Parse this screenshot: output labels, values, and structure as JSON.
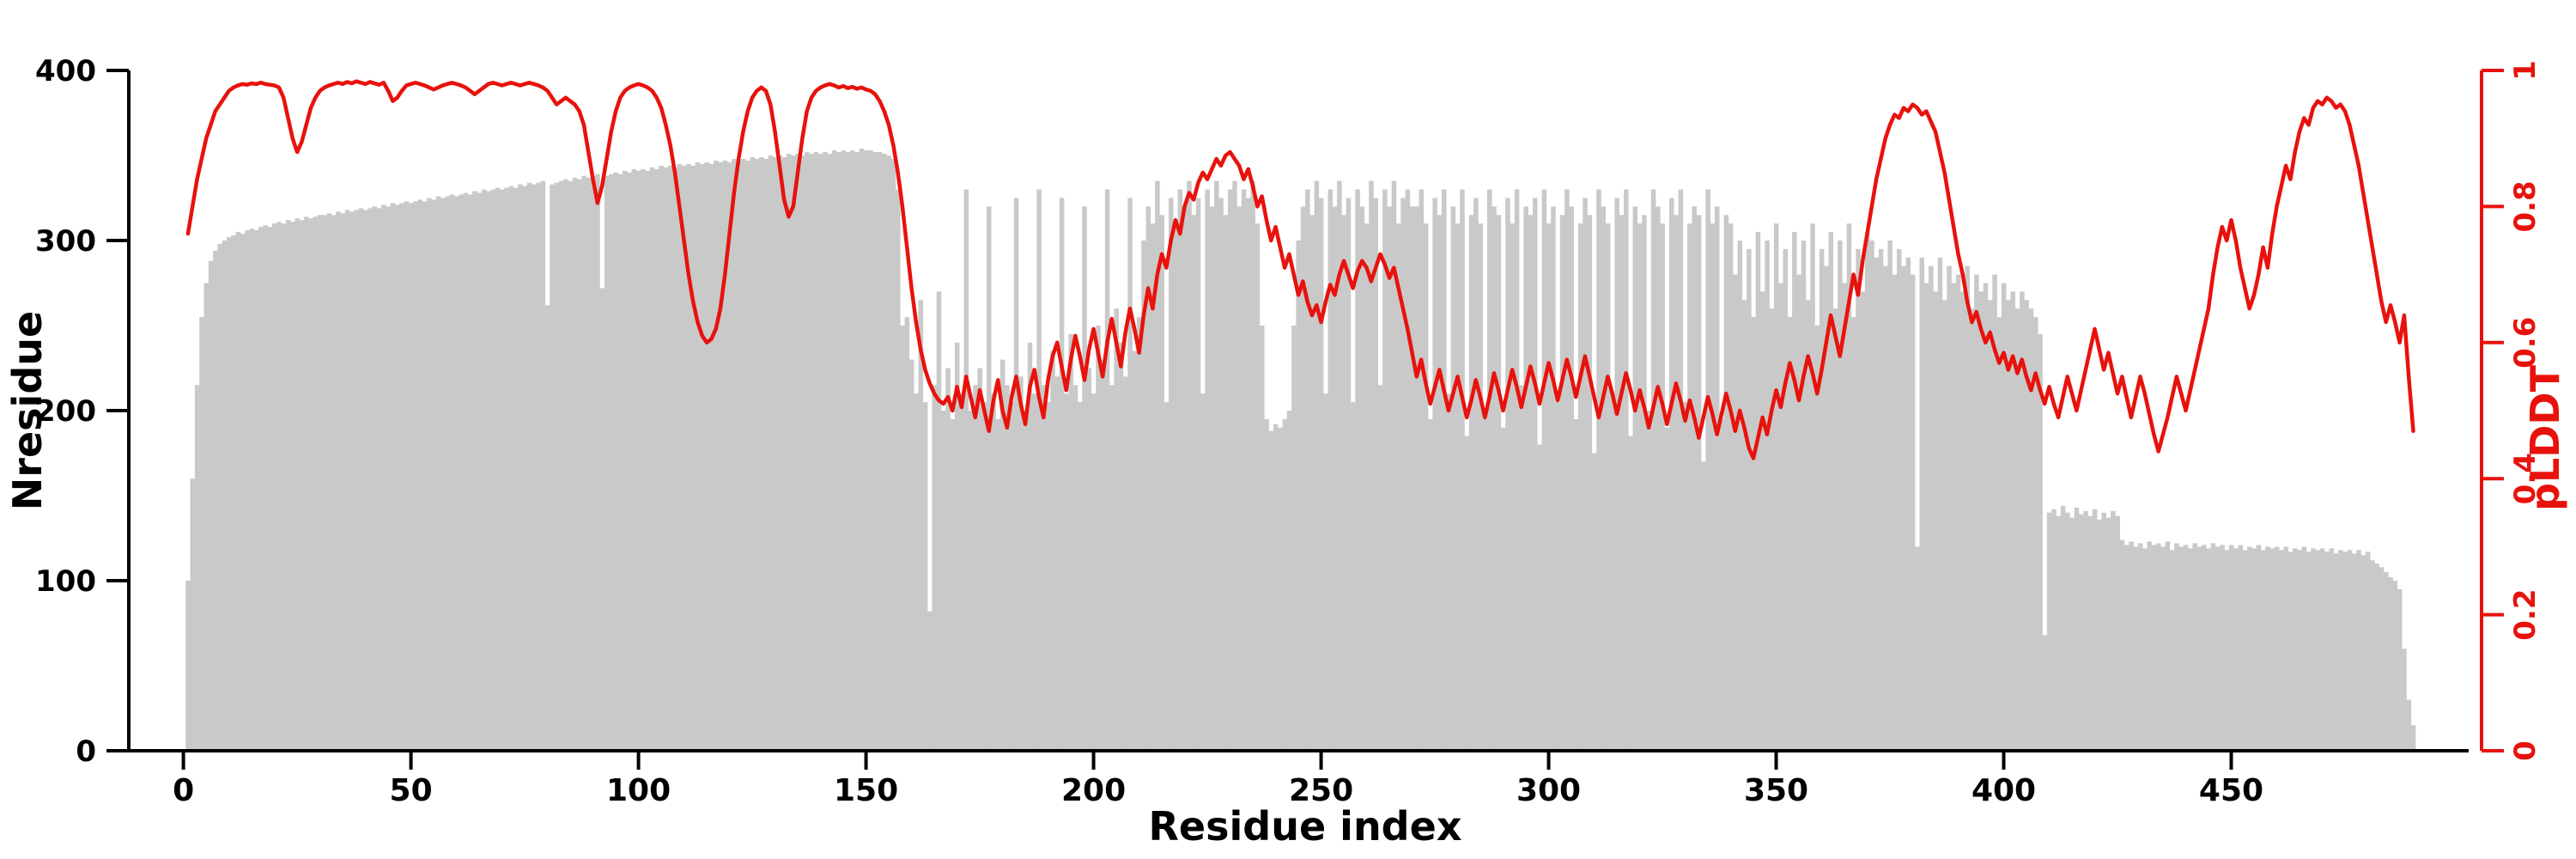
{
  "chart_data": {
    "type": "bar",
    "title": "",
    "xlabel": "Residue index",
    "ylabel_left": "Nresidue",
    "ylabel_right": "pLDDT",
    "xlim": [
      -12,
      505
    ],
    "ylim_left": [
      0,
      400
    ],
    "ylim_right": [
      0,
      1
    ],
    "x_ticks": [
      0,
      50,
      100,
      150,
      200,
      250,
      300,
      350,
      400,
      450
    ],
    "y_left_ticks": [
      0,
      100,
      200,
      300,
      400
    ],
    "y_right_tick_labels": [
      "0",
      "0.2",
      "0.4",
      "0.6",
      "0.8",
      "1"
    ],
    "y_right_tick_values": [
      0,
      0.2,
      0.4,
      0.6,
      0.8,
      1
    ],
    "grid": false,
    "legend": "none",
    "bar_color": "#c9c9c9",
    "line_color": "#e8120c",
    "axis_color": "#000000",
    "series": [
      {
        "name": "Nresidue",
        "type": "bar",
        "axis": "left",
        "x_start": 1,
        "values": [
          100,
          160,
          215,
          255,
          275,
          288,
          294,
          298,
          300,
          302,
          303,
          305,
          304,
          306,
          307,
          306,
          308,
          309,
          308,
          310,
          311,
          310,
          312,
          311,
          313,
          312,
          314,
          313,
          314,
          315,
          315,
          316,
          315,
          317,
          316,
          318,
          317,
          318,
          319,
          318,
          319,
          320,
          319,
          321,
          320,
          322,
          321,
          322,
          323,
          322,
          323,
          324,
          323,
          325,
          324,
          326,
          325,
          326,
          327,
          326,
          327,
          328,
          327,
          329,
          328,
          330,
          329,
          330,
          331,
          330,
          331,
          332,
          331,
          333,
          332,
          334,
          333,
          334,
          335,
          262,
          333,
          334,
          335,
          336,
          335,
          337,
          336,
          338,
          337,
          338,
          339,
          272,
          338,
          339,
          340,
          339,
          341,
          340,
          342,
          341,
          342,
          341,
          343,
          342,
          344,
          343,
          344,
          343,
          345,
          344,
          345,
          344,
          346,
          345,
          346,
          345,
          347,
          346,
          347,
          346,
          348,
          347,
          348,
          347,
          349,
          348,
          349,
          348,
          350,
          349,
          350,
          349,
          351,
          350,
          351,
          350,
          352,
          351,
          352,
          351,
          352,
          351,
          353,
          352,
          353,
          352,
          353,
          352,
          354,
          353,
          353,
          352,
          352,
          351,
          350,
          348,
          330,
          250,
          255,
          230,
          210,
          265,
          205,
          82,
          215,
          270,
          200,
          225,
          195,
          240,
          210,
          330,
          200,
          215,
          225,
          205,
          320,
          210,
          195,
          230,
          215,
          205,
          325,
          220,
          200,
          240,
          210,
          330,
          215,
          205,
          235,
          220,
          325,
          210,
          245,
          215,
          205,
          320,
          225,
          210,
          250,
          230,
          330,
          215,
          260,
          240,
          220,
          325,
          235,
          255,
          300,
          320,
          310,
          335,
          315,
          205,
          325,
          310,
          330,
          320,
          335,
          315,
          325,
          210,
          330,
          320,
          335,
          325,
          315,
          330,
          335,
          320,
          330,
          325,
          335,
          310,
          250,
          195,
          188,
          192,
          190,
          195,
          200,
          250,
          300,
          320,
          330,
          315,
          335,
          325,
          210,
          330,
          320,
          335,
          315,
          325,
          205,
          330,
          320,
          310,
          335,
          325,
          215,
          330,
          320,
          335,
          310,
          325,
          330,
          320,
          320,
          330,
          310,
          195,
          325,
          315,
          330,
          210,
          320,
          310,
          330,
          185,
          315,
          325,
          310,
          200,
          330,
          320,
          315,
          190,
          325,
          310,
          330,
          215,
          320,
          315,
          325,
          180,
          330,
          310,
          320,
          205,
          315,
          330,
          320,
          195,
          310,
          325,
          315,
          175,
          330,
          320,
          310,
          210,
          325,
          315,
          330,
          185,
          320,
          310,
          315,
          200,
          330,
          320,
          310,
          190,
          325,
          315,
          330,
          205,
          310,
          320,
          315,
          170,
          330,
          310,
          320,
          195,
          315,
          310,
          280,
          300,
          265,
          295,
          255,
          305,
          270,
          300,
          260,
          310,
          275,
          295,
          255,
          305,
          280,
          300,
          265,
          310,
          250,
          295,
          285,
          305,
          260,
          300,
          275,
          310,
          255,
          295,
          270,
          305,
          300,
          290,
          295,
          285,
          300,
          280,
          295,
          285,
          290,
          280,
          120,
          290,
          275,
          285,
          270,
          290,
          265,
          285,
          275,
          280,
          270,
          285,
          260,
          280,
          270,
          275,
          265,
          280,
          255,
          275,
          265,
          270,
          260,
          270,
          265,
          260,
          255,
          245,
          68,
          140,
          142,
          138,
          144,
          140,
          137,
          143,
          139,
          141,
          138,
          142,
          136,
          140,
          137,
          141,
          138,
          124,
          121,
          123,
          120,
          122,
          119,
          123,
          121,
          122,
          120,
          123,
          118,
          122,
          120,
          121,
          119,
          122,
          120,
          121,
          119,
          122,
          120,
          121,
          118,
          121,
          119,
          121,
          118,
          120,
          119,
          121,
          118,
          120,
          119,
          120,
          118,
          120,
          117,
          119,
          118,
          120,
          117,
          119,
          118,
          119,
          117,
          119,
          116,
          118,
          117,
          118,
          116,
          118,
          115,
          117,
          112,
          110,
          108,
          105,
          102,
          100,
          95,
          60,
          30,
          15
        ]
      },
      {
        "name": "pLDDT",
        "type": "line",
        "axis": "right",
        "x_start": 1,
        "values": [
          0.76,
          0.8,
          0.84,
          0.87,
          0.9,
          0.92,
          0.94,
          0.95,
          0.96,
          0.97,
          0.975,
          0.978,
          0.98,
          0.979,
          0.981,
          0.98,
          0.982,
          0.98,
          0.979,
          0.978,
          0.975,
          0.96,
          0.93,
          0.9,
          0.88,
          0.895,
          0.92,
          0.945,
          0.96,
          0.97,
          0.975,
          0.978,
          0.98,
          0.982,
          0.98,
          0.983,
          0.981,
          0.984,
          0.982,
          0.98,
          0.983,
          0.981,
          0.979,
          0.982,
          0.97,
          0.955,
          0.96,
          0.97,
          0.978,
          0.98,
          0.982,
          0.98,
          0.978,
          0.975,
          0.972,
          0.975,
          0.978,
          0.98,
          0.982,
          0.98,
          0.978,
          0.975,
          0.97,
          0.965,
          0.97,
          0.975,
          0.98,
          0.982,
          0.98,
          0.978,
          0.98,
          0.982,
          0.98,
          0.978,
          0.98,
          0.982,
          0.98,
          0.978,
          0.975,
          0.97,
          0.96,
          0.95,
          0.955,
          0.96,
          0.955,
          0.95,
          0.94,
          0.92,
          0.88,
          0.84,
          0.805,
          0.83,
          0.87,
          0.91,
          0.94,
          0.96,
          0.97,
          0.975,
          0.978,
          0.98,
          0.978,
          0.975,
          0.97,
          0.96,
          0.945,
          0.92,
          0.89,
          0.85,
          0.8,
          0.75,
          0.7,
          0.66,
          0.63,
          0.61,
          0.6,
          0.605,
          0.62,
          0.65,
          0.7,
          0.76,
          0.82,
          0.87,
          0.91,
          0.94,
          0.96,
          0.97,
          0.975,
          0.97,
          0.95,
          0.91,
          0.86,
          0.81,
          0.785,
          0.8,
          0.85,
          0.9,
          0.94,
          0.96,
          0.97,
          0.975,
          0.978,
          0.98,
          0.978,
          0.975,
          0.977,
          0.974,
          0.976,
          0.973,
          0.975,
          0.972,
          0.97,
          0.965,
          0.955,
          0.94,
          0.92,
          0.89,
          0.85,
          0.8,
          0.74,
          0.68,
          0.63,
          0.59,
          0.56,
          0.54,
          0.525,
          0.515,
          0.51,
          0.52,
          0.5,
          0.535,
          0.505,
          0.55,
          0.52,
          0.49,
          0.53,
          0.5,
          0.47,
          0.515,
          0.545,
          0.5,
          0.475,
          0.52,
          0.55,
          0.51,
          0.48,
          0.535,
          0.56,
          0.52,
          0.49,
          0.545,
          0.58,
          0.6,
          0.565,
          0.53,
          0.575,
          0.61,
          0.58,
          0.545,
          0.59,
          0.62,
          0.585,
          0.55,
          0.6,
          0.635,
          0.6,
          0.565,
          0.615,
          0.65,
          0.62,
          0.585,
          0.64,
          0.68,
          0.65,
          0.7,
          0.73,
          0.71,
          0.75,
          0.78,
          0.76,
          0.8,
          0.82,
          0.81,
          0.835,
          0.85,
          0.84,
          0.855,
          0.87,
          0.86,
          0.875,
          0.88,
          0.87,
          0.86,
          0.84,
          0.855,
          0.83,
          0.8,
          0.815,
          0.78,
          0.75,
          0.77,
          0.74,
          0.71,
          0.73,
          0.7,
          0.67,
          0.69,
          0.66,
          0.64,
          0.655,
          0.63,
          0.66,
          0.685,
          0.67,
          0.7,
          0.72,
          0.7,
          0.68,
          0.705,
          0.72,
          0.71,
          0.69,
          0.71,
          0.73,
          0.715,
          0.695,
          0.71,
          0.68,
          0.65,
          0.62,
          0.585,
          0.55,
          0.575,
          0.54,
          0.51,
          0.535,
          0.56,
          0.53,
          0.5,
          0.525,
          0.55,
          0.52,
          0.49,
          0.515,
          0.545,
          0.52,
          0.49,
          0.52,
          0.555,
          0.53,
          0.5,
          0.53,
          0.56,
          0.535,
          0.505,
          0.535,
          0.565,
          0.54,
          0.51,
          0.54,
          0.57,
          0.545,
          0.515,
          0.545,
          0.575,
          0.55,
          0.52,
          0.55,
          0.58,
          0.55,
          0.52,
          0.49,
          0.52,
          0.55,
          0.525,
          0.495,
          0.525,
          0.555,
          0.53,
          0.5,
          0.53,
          0.505,
          0.475,
          0.505,
          0.535,
          0.51,
          0.48,
          0.51,
          0.54,
          0.515,
          0.485,
          0.515,
          0.49,
          0.46,
          0.49,
          0.52,
          0.495,
          0.465,
          0.495,
          0.525,
          0.5,
          0.47,
          0.5,
          0.475,
          0.445,
          0.43,
          0.46,
          0.49,
          0.465,
          0.5,
          0.53,
          0.505,
          0.54,
          0.57,
          0.545,
          0.515,
          0.55,
          0.58,
          0.555,
          0.525,
          0.56,
          0.6,
          0.64,
          0.61,
          0.58,
          0.62,
          0.66,
          0.7,
          0.67,
          0.72,
          0.76,
          0.8,
          0.84,
          0.87,
          0.9,
          0.92,
          0.935,
          0.93,
          0.945,
          0.94,
          0.95,
          0.945,
          0.935,
          0.94,
          0.925,
          0.91,
          0.88,
          0.85,
          0.81,
          0.77,
          0.73,
          0.7,
          0.66,
          0.63,
          0.645,
          0.62,
          0.6,
          0.615,
          0.59,
          0.57,
          0.585,
          0.56,
          0.58,
          0.555,
          0.575,
          0.55,
          0.53,
          0.555,
          0.53,
          0.51,
          0.535,
          0.51,
          0.49,
          0.52,
          0.55,
          0.525,
          0.5,
          0.53,
          0.56,
          0.59,
          0.62,
          0.59,
          0.56,
          0.585,
          0.555,
          0.525,
          0.55,
          0.52,
          0.49,
          0.52,
          0.55,
          0.525,
          0.495,
          0.465,
          0.44,
          0.465,
          0.49,
          0.52,
          0.55,
          0.525,
          0.5,
          0.53,
          0.56,
          0.59,
          0.62,
          0.65,
          0.7,
          0.74,
          0.77,
          0.75,
          0.78,
          0.75,
          0.71,
          0.68,
          0.65,
          0.67,
          0.7,
          0.74,
          0.71,
          0.76,
          0.8,
          0.83,
          0.86,
          0.84,
          0.88,
          0.91,
          0.93,
          0.92,
          0.945,
          0.955,
          0.95,
          0.96,
          0.955,
          0.945,
          0.95,
          0.94,
          0.92,
          0.89,
          0.86,
          0.82,
          0.78,
          0.74,
          0.7,
          0.66,
          0.63,
          0.655,
          0.63,
          0.6,
          0.64,
          0.55,
          0.47
        ]
      }
    ]
  }
}
